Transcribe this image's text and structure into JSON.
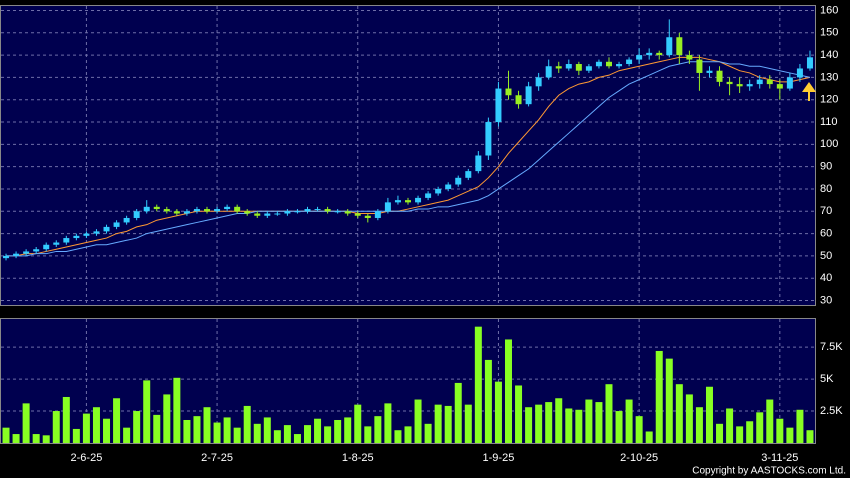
{
  "chart_data": {
    "type": "candlestick",
    "categories": [
      null,
      null,
      null,
      null,
      null,
      null,
      null,
      null,
      "2-6-25",
      null,
      null,
      null,
      null,
      null,
      null,
      null,
      null,
      null,
      null,
      null,
      null,
      "2-7-25",
      null,
      null,
      null,
      null,
      null,
      null,
      null,
      null,
      null,
      null,
      null,
      null,
      null,
      "1-8-25",
      null,
      null,
      null,
      null,
      null,
      null,
      null,
      null,
      null,
      null,
      null,
      null,
      null,
      "1-9-25",
      null,
      null,
      null,
      null,
      null,
      null,
      null,
      null,
      null,
      null,
      null,
      null,
      null,
      "2-10-25",
      null,
      null,
      null,
      null,
      null,
      null,
      null,
      null,
      null,
      null,
      null,
      null,
      null,
      "3-11-25",
      null,
      null,
      null
    ],
    "open": [
      49,
      50,
      51,
      52,
      53,
      55,
      56,
      58,
      59,
      60,
      61,
      63,
      65,
      67,
      70,
      72,
      71,
      70,
      69,
      70,
      71,
      70,
      71,
      72,
      70,
      69,
      68,
      69,
      69,
      70,
      70,
      71,
      71,
      70,
      70,
      69,
      68,
      67,
      70,
      74,
      75,
      74,
      76,
      78,
      80,
      82,
      85,
      88,
      95,
      110,
      125,
      122,
      118,
      126,
      130,
      135,
      134,
      136,
      133,
      135,
      137,
      135,
      136,
      138,
      140,
      141,
      140,
      148,
      140,
      138,
      132,
      133,
      128,
      127,
      126,
      127,
      129,
      127,
      125,
      130,
      134
    ],
    "high": [
      51,
      52,
      53,
      54,
      56,
      57,
      59,
      60,
      61,
      62,
      64,
      66,
      68,
      71,
      75,
      73,
      72,
      71,
      71,
      72,
      72,
      72,
      73,
      73,
      71,
      70,
      70,
      70,
      71,
      71,
      72,
      72,
      72,
      71,
      71,
      70,
      69,
      71,
      76,
      77,
      76,
      77,
      79,
      81,
      83,
      86,
      89,
      97,
      112,
      128,
      133,
      124,
      128,
      132,
      138,
      137,
      138,
      137,
      136,
      138,
      139,
      137,
      139,
      143,
      143,
      142,
      156,
      150,
      142,
      140,
      135,
      135,
      130,
      130,
      129,
      131,
      131,
      129,
      132,
      136,
      142
    ],
    "low": [
      48,
      49,
      50,
      51,
      52,
      54,
      55,
      57,
      58,
      59,
      60,
      62,
      64,
      66,
      69,
      70,
      69,
      68,
      68,
      69,
      69,
      69,
      70,
      69,
      68,
      67,
      67,
      68,
      68,
      69,
      69,
      70,
      69,
      69,
      68,
      67,
      65,
      66,
      69,
      73,
      73,
      73,
      75,
      77,
      79,
      81,
      84,
      87,
      93,
      108,
      120,
      116,
      117,
      124,
      129,
      132,
      133,
      131,
      132,
      134,
      134,
      134,
      135,
      136,
      138,
      138,
      139,
      136,
      136,
      124,
      130,
      126,
      122,
      123,
      124,
      125,
      125,
      120,
      124,
      128,
      133
    ],
    "close": [
      50,
      51,
      52,
      53,
      55,
      56,
      58,
      59,
      60,
      61,
      63,
      65,
      67,
      70,
      72,
      71,
      70,
      69,
      70,
      71,
      70,
      71,
      72,
      70,
      69,
      68,
      69,
      69,
      70,
      70,
      71,
      71,
      70,
      70,
      69,
      68,
      67,
      70,
      74,
      75,
      74,
      76,
      78,
      80,
      82,
      85,
      88,
      95,
      110,
      125,
      122,
      118,
      126,
      130,
      135,
      134,
      136,
      133,
      135,
      137,
      135,
      136,
      138,
      140,
      141,
      140,
      148,
      140,
      138,
      132,
      133,
      128,
      127,
      126,
      127,
      129,
      127,
      125,
      130,
      134,
      139
    ],
    "up_color": "#33ccff",
    "down_color": "#99ee22",
    "series": [
      {
        "color": "#ff9933",
        "values": [
          50,
          50,
          51,
          51,
          52,
          53,
          54,
          55,
          56,
          57,
          58,
          60,
          61,
          63,
          64,
          66,
          67,
          68,
          69,
          70,
          70,
          70,
          70,
          70,
          70,
          70,
          70,
          70,
          70,
          70,
          70,
          70,
          70,
          70,
          70,
          69,
          69,
          69,
          70,
          70,
          71,
          72,
          73,
          74,
          75,
          77,
          79,
          81,
          85,
          90,
          96,
          101,
          106,
          111,
          117,
          122,
          125,
          127,
          128,
          130,
          131,
          133,
          134,
          135,
          136,
          137,
          138,
          139,
          139,
          139,
          138,
          137,
          135,
          133,
          132,
          130,
          129,
          128,
          128,
          129,
          130
        ]
      },
      {
        "color": "#66aaff",
        "values": [
          50,
          50,
          50,
          51,
          51,
          52,
          52,
          53,
          54,
          55,
          55,
          56,
          57,
          58,
          60,
          61,
          62,
          63,
          64,
          65,
          66,
          67,
          68,
          69,
          69,
          70,
          70,
          70,
          70,
          70,
          70,
          70,
          70,
          70,
          70,
          70,
          70,
          70,
          70,
          70,
          70,
          71,
          71,
          72,
          72,
          73,
          74,
          75,
          77,
          80,
          83,
          86,
          89,
          93,
          97,
          101,
          105,
          109,
          113,
          117,
          121,
          124,
          127,
          129,
          131,
          133,
          135,
          136,
          137,
          137,
          137,
          137,
          136,
          136,
          135,
          135,
          134,
          133,
          132,
          131,
          130
        ]
      }
    ],
    "ylim": [
      28,
      162
    ],
    "yticks": [
      30,
      40,
      50,
      60,
      70,
      80,
      90,
      100,
      110,
      120,
      130,
      140,
      150,
      160
    ],
    "grid": true,
    "volume": {
      "type": "bar",
      "color": "#88ff22",
      "values": [
        1200,
        700,
        3100,
        700,
        600,
        2500,
        3600,
        1100,
        2300,
        2800,
        1900,
        3500,
        1200,
        2500,
        4900,
        2200,
        3800,
        5100,
        1800,
        2100,
        2800,
        1600,
        2000,
        1200,
        2900,
        1500,
        2000,
        1000,
        1400,
        700,
        1400,
        1900,
        1300,
        1800,
        2000,
        3000,
        1300,
        2100,
        3100,
        1000,
        1300,
        3400,
        1500,
        3000,
        2900,
        4700,
        3000,
        9100,
        6500,
        4800,
        8100,
        4500,
        2800,
        3000,
        3200,
        3500,
        2700,
        2600,
        3400,
        3200,
        4600,
        2500,
        3400,
        2100,
        900,
        7200,
        6600,
        4600,
        3800,
        2800,
        4400,
        1500,
        2700,
        1300,
        1700,
        2400,
        3400,
        1900,
        1200,
        2600,
        1000
      ],
      "ylim": [
        0,
        9700
      ],
      "yticks": [
        {
          "value": 2500,
          "label": "2.5K"
        },
        {
          "value": 5000,
          "label": "5K"
        },
        {
          "value": 7500,
          "label": "7.5K"
        }
      ]
    },
    "copyright": "Copyright by AASTOCKS.com Ltd."
  }
}
